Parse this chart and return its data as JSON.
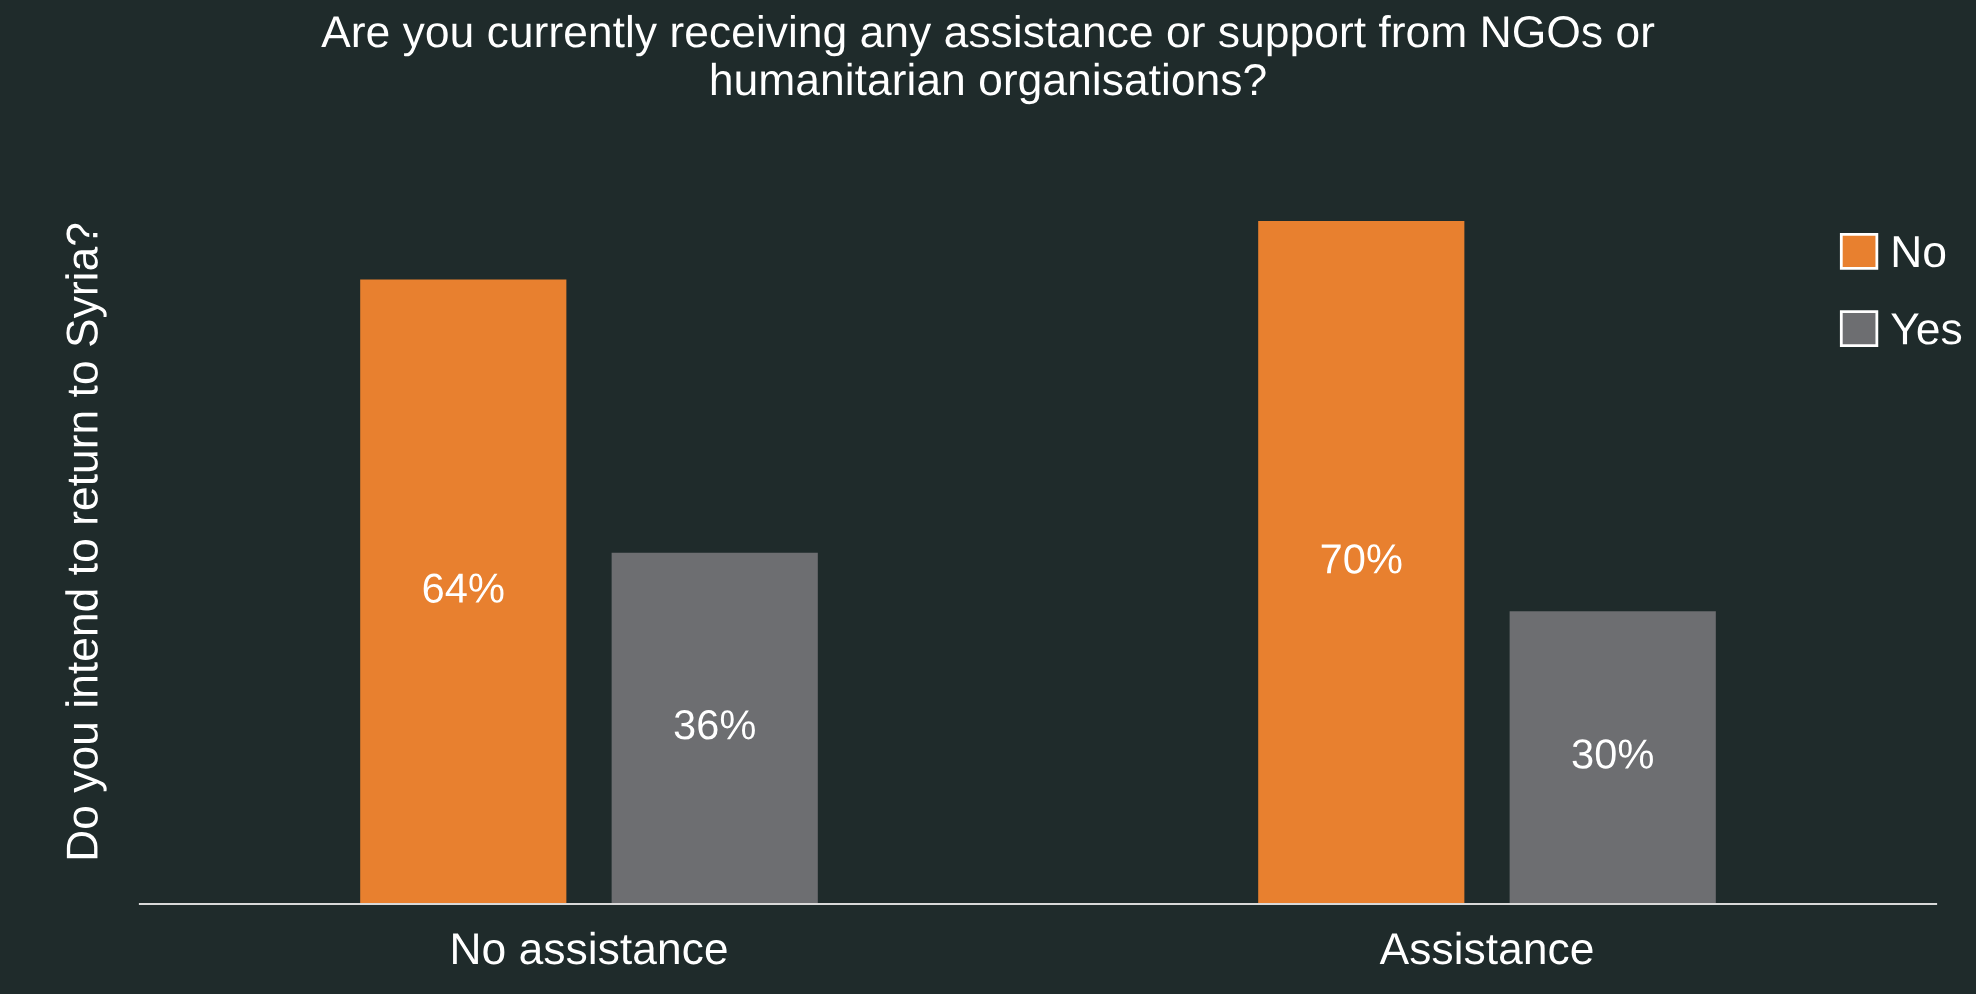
{
  "chart_data": {
    "type": "bar",
    "title": "Are you currently receiving any assistance or support from NGOs or\nhumanitarian organisations?",
    "ylabel": "Do you intend to return to Syria?",
    "categories": [
      "No assistance",
      "Assistance"
    ],
    "series": [
      {
        "name": "No",
        "color": "#e8802f",
        "values": [
          64,
          70
        ],
        "value_labels": [
          "64%",
          "70%"
        ]
      },
      {
        "name": "Yes",
        "color": "#6d6e71",
        "values": [
          36,
          30
        ],
        "value_labels": [
          "36%",
          "30%"
        ]
      }
    ],
    "legend": "top right",
    "grid": false
  }
}
